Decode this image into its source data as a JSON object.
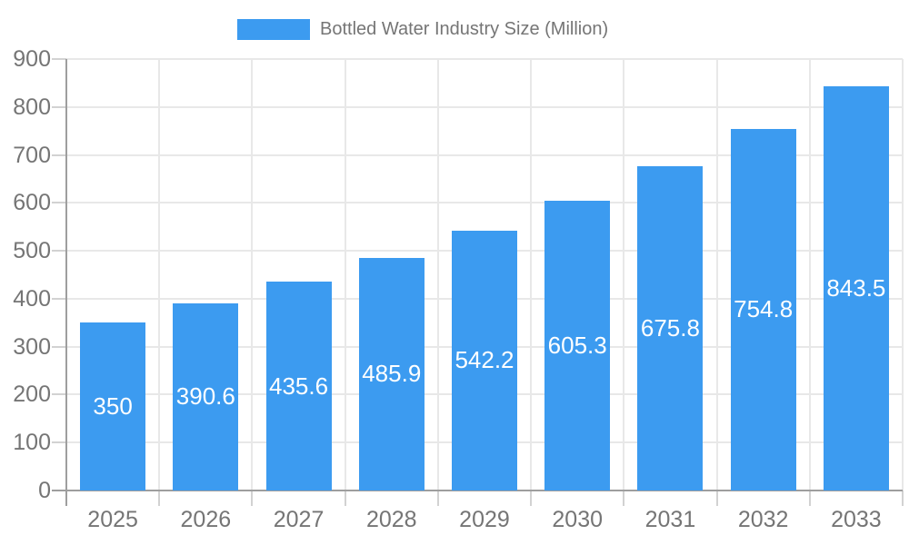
{
  "chart_data": {
    "type": "bar",
    "title": "Bottled Water Industry Size (Million)",
    "legend": {
      "position": "top",
      "label": "Bottled Water Industry Size (Million)"
    },
    "categories": [
      "2025",
      "2026",
      "2027",
      "2028",
      "2029",
      "2030",
      "2031",
      "2032",
      "2033"
    ],
    "series": [
      {
        "name": "Bottled Water Industry Size (Million)",
        "values": [
          350,
          390.6,
          435.6,
          485.9,
          542.2,
          605.3,
          675.8,
          754.8,
          843.5
        ]
      }
    ],
    "value_labels": [
      "350",
      "390.6",
      "435.6",
      "485.9",
      "542.2",
      "605.3",
      "675.8",
      "754.8",
      "843.5"
    ],
    "xlabel": "",
    "ylabel": "",
    "ylim": [
      0,
      900
    ],
    "yticks": [
      0,
      100,
      200,
      300,
      400,
      500,
      600,
      700,
      800,
      900
    ],
    "grid": true,
    "colors": {
      "bar": "#3C9BF0",
      "value_label": "#FFFFFF",
      "axis_text": "#757575",
      "gridline": "#E8E8E8",
      "tick": "#D2D2D2",
      "axis_line": "#9E9E9E",
      "background": "#FFFFFF"
    }
  }
}
